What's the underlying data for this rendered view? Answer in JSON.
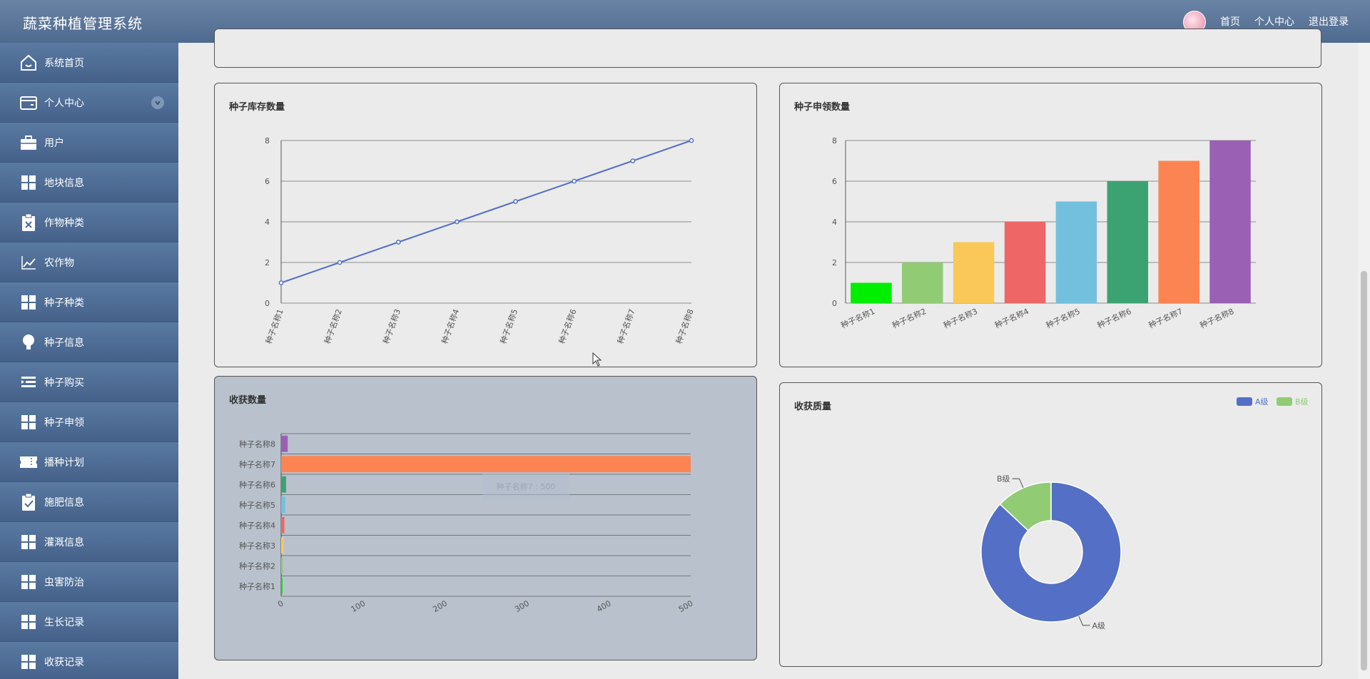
{
  "header": {
    "title": "蔬菜种植管理系统",
    "links": [
      "首页",
      "个人中心",
      "退出登录"
    ]
  },
  "sidebar": {
    "items": [
      {
        "label": "系统首页",
        "icon": "home-icon"
      },
      {
        "label": "个人中心",
        "icon": "wallet-icon"
      },
      {
        "label": "用户",
        "icon": "briefcase-icon"
      },
      {
        "label": "地块信息",
        "icon": "grid-icon"
      },
      {
        "label": "作物种类",
        "icon": "clipboard-x-icon"
      },
      {
        "label": "农作物",
        "icon": "trend-chart-icon"
      },
      {
        "label": "种子种类",
        "icon": "grid-icon"
      },
      {
        "label": "种子信息",
        "icon": "bulb-icon"
      },
      {
        "label": "种子购买",
        "icon": "list-indent-icon"
      },
      {
        "label": "种子申领",
        "icon": "grid-icon"
      },
      {
        "label": "播种计划",
        "icon": "ticket-icon"
      },
      {
        "label": "施肥信息",
        "icon": "clipboard-check-icon"
      },
      {
        "label": "灌溉信息",
        "icon": "grid-icon"
      },
      {
        "label": "虫害防治",
        "icon": "grid-icon"
      },
      {
        "label": "生长记录",
        "icon": "grid-icon"
      },
      {
        "label": "收获记录",
        "icon": "grid-icon"
      }
    ]
  },
  "cards": {
    "seed_stock_title": "种子库存数量",
    "seed_apply_title": "种子申领数量",
    "harvest_count_title": "收获数量",
    "harvest_quality_title": "收获质量"
  },
  "tooltip": "种子名称7 : 500",
  "colors": {
    "header": "#5c7a9e",
    "sidebar": "#4d6a92",
    "line": "#5470c6",
    "bars": [
      "#00ee00",
      "#91cc75",
      "#fac858",
      "#ee6666",
      "#73c0de",
      "#3ba272",
      "#fc8452",
      "#9a60b4"
    ]
  },
  "chart_data": [
    {
      "type": "line",
      "title": "种子库存数量",
      "categories": [
        "种子名称1",
        "种子名称2",
        "种子名称3",
        "种子名称4",
        "种子名称5",
        "种子名称6",
        "种子名称7",
        "种子名称8"
      ],
      "values": [
        1,
        2,
        3,
        4,
        5,
        6,
        7,
        8
      ],
      "ylim": [
        0,
        8
      ],
      "yticks": [
        0,
        2,
        4,
        6,
        8
      ]
    },
    {
      "type": "bar",
      "title": "种子申领数量",
      "categories": [
        "种子名称1",
        "种子名称2",
        "种子名称3",
        "种子名称4",
        "种子名称5",
        "种子名称6",
        "种子名称7",
        "种子名称8"
      ],
      "values": [
        1,
        2,
        3,
        4,
        5,
        6,
        7,
        8
      ],
      "ylim": [
        0,
        8
      ],
      "yticks": [
        0,
        2,
        4,
        6,
        8
      ]
    },
    {
      "type": "bar",
      "orientation": "horizontal",
      "title": "收获数量",
      "categories": [
        "种子名称1",
        "种子名称2",
        "种子名称3",
        "种子名称4",
        "种子名称5",
        "种子名称6",
        "种子名称7",
        "种子名称8"
      ],
      "values": [
        1,
        2,
        3,
        4,
        5,
        6,
        500,
        8
      ],
      "xlim": [
        0,
        500
      ],
      "xticks": [
        0,
        100,
        200,
        300,
        400,
        500
      ]
    },
    {
      "type": "pie",
      "title": "收获质量",
      "legend": [
        "A级",
        "B级"
      ],
      "slices": [
        {
          "name": "A级",
          "value": 87
        },
        {
          "name": "B级",
          "value": 13
        }
      ],
      "colors": [
        "#5470c6",
        "#91cc75"
      ]
    }
  ]
}
